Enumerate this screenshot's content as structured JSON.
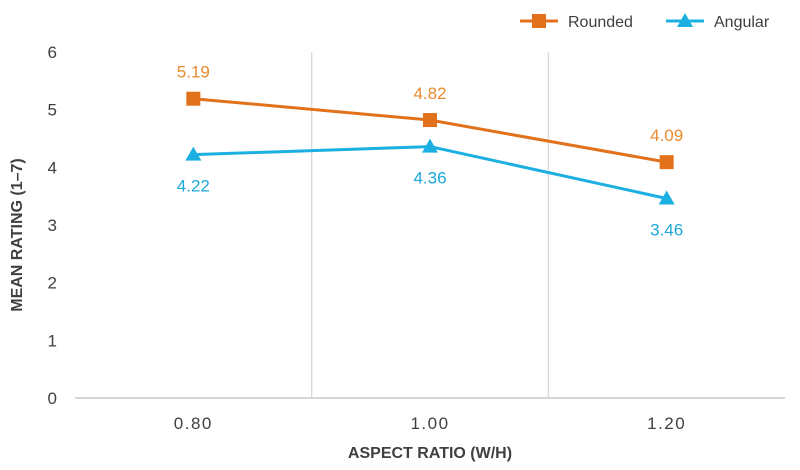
{
  "chart_data": {
    "type": "line",
    "title": "",
    "xlabel": "ASPECT RATIO (W/H)",
    "ylabel": "MEAN RATING (1–7)",
    "categories": [
      "0.80",
      "1.00",
      "1.20"
    ],
    "ylim": [
      0,
      6
    ],
    "yticks": [
      "0",
      "1",
      "2",
      "3",
      "4",
      "5",
      "6"
    ],
    "grid": "vertical",
    "legend_position": "top-right",
    "series": [
      {
        "name": "Rounded",
        "values": [
          5.19,
          4.82,
          4.09
        ],
        "labels": [
          "5.19",
          "4.82",
          "4.09"
        ],
        "label_position": "above",
        "color": "#E2711C",
        "label_color": "#E98A2E",
        "marker": "square"
      },
      {
        "name": "Angular",
        "values": [
          4.22,
          4.36,
          3.46
        ],
        "labels": [
          "4.22",
          "4.36",
          "3.46"
        ],
        "label_position": "below",
        "color": "#1CB0E2",
        "label_color": "#1CA8D8",
        "marker": "triangle"
      }
    ]
  }
}
